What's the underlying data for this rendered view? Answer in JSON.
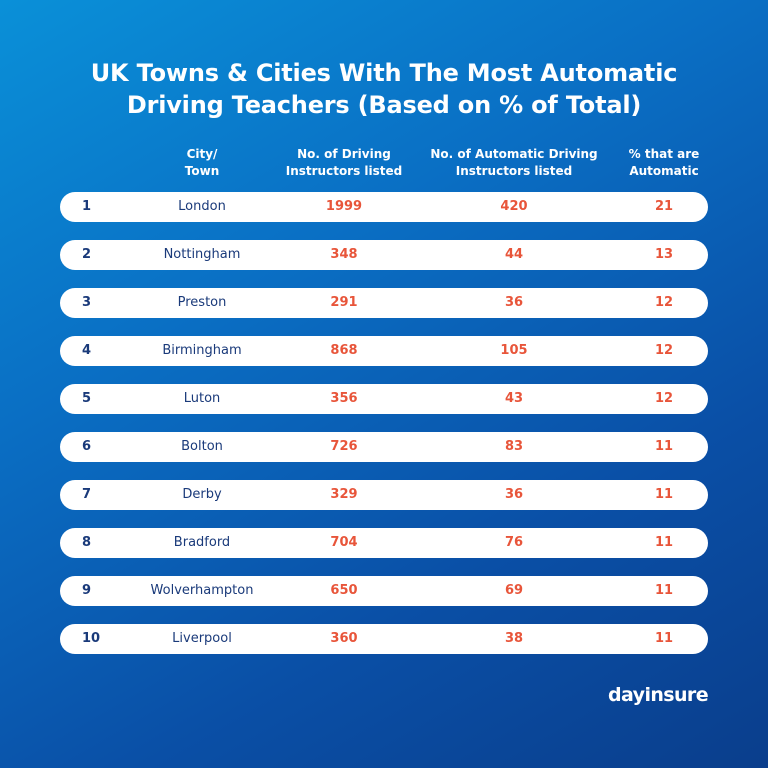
{
  "title": {
    "line1": "UK Towns & Cities With The Most Automatic",
    "line2": "Driving Teachers (Based on % of Total)"
  },
  "columns": {
    "city": [
      "City/",
      "Town"
    ],
    "instructors": [
      "No. of Driving",
      "Instructors listed"
    ],
    "automatic": [
      "No. of Automatic Driving",
      "Instructors listed"
    ],
    "percent": [
      "% that are",
      "Automatic"
    ]
  },
  "chart_data": {
    "type": "table",
    "title": "UK Towns & Cities With The Most Automatic Driving Teachers (Based on % of Total)",
    "columns": [
      "",
      "City/ Town",
      "No. of Driving Instructors listed",
      "No. of Automatic Driving Instructors listed",
      "% that are Automatic"
    ],
    "rows": [
      {
        "rank": "1",
        "city": "London",
        "instructors": "1999",
        "automatic": "420",
        "percent": "21"
      },
      {
        "rank": "2",
        "city": "Nottingham",
        "instructors": "348",
        "automatic": "44",
        "percent": "13"
      },
      {
        "rank": "3",
        "city": "Preston",
        "instructors": "291",
        "automatic": "36",
        "percent": "12"
      },
      {
        "rank": "4",
        "city": "Birmingham",
        "instructors": "868",
        "automatic": "105",
        "percent": "12"
      },
      {
        "rank": "5",
        "city": "Luton",
        "instructors": "356",
        "automatic": "43",
        "percent": "12"
      },
      {
        "rank": "6",
        "city": "Bolton",
        "instructors": "726",
        "automatic": "83",
        "percent": "11"
      },
      {
        "rank": "7",
        "city": "Derby",
        "instructors": "329",
        "automatic": "36",
        "percent": "11"
      },
      {
        "rank": "8",
        "city": "Bradford",
        "instructors": "704",
        "automatic": "76",
        "percent": "11"
      },
      {
        "rank": "9",
        "city": "Wolverhampton",
        "instructors": "650",
        "automatic": "69",
        "percent": "11"
      },
      {
        "rank": "10",
        "city": "Liverpool",
        "instructors": "360",
        "automatic": "38",
        "percent": "11"
      }
    ]
  },
  "colors": {
    "background_light": "#0a90d8",
    "background_dark": "#0a3e8c",
    "text_dark": "#1a3a7a",
    "accent": "#e8553a",
    "row_bg": "#ffffff"
  },
  "logo": "dayinsure"
}
